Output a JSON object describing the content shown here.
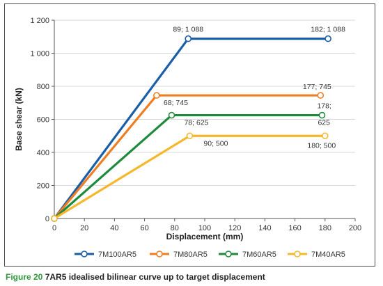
{
  "chart_data": {
    "type": "line",
    "xlabel": "Displacement (mm)",
    "ylabel": "Base shear (kN)",
    "xlim": [
      0,
      200
    ],
    "ylim": [
      0,
      1200
    ],
    "x_ticks": [
      0,
      20,
      40,
      60,
      80,
      100,
      120,
      140,
      160,
      180,
      200
    ],
    "y_ticks": [
      0,
      200,
      400,
      600,
      800,
      1000,
      1200
    ],
    "y_tick_labels": [
      "0",
      "200",
      "400",
      "600",
      "800",
      "1 000",
      "1 200"
    ],
    "grid": "horizontal",
    "legend_position": "bottom",
    "series": [
      {
        "name": "7M100AR5",
        "color": "#1a5ea8",
        "points": [
          [
            0,
            0
          ],
          [
            89,
            1088
          ],
          [
            182,
            1088
          ]
        ],
        "labels": [
          {
            "text": "89; 1 088",
            "point": 1
          },
          {
            "text": "182; 1 088",
            "point": 2
          }
        ]
      },
      {
        "name": "7M80AR5",
        "color": "#ef7d22",
        "points": [
          [
            0,
            0
          ],
          [
            68,
            745
          ],
          [
            177,
            745
          ]
        ],
        "labels": [
          {
            "text": "68; 745",
            "point": 1
          },
          {
            "text": "177; 745",
            "point": 2
          }
        ]
      },
      {
        "name": "7M60AR5",
        "color": "#1e8a3c",
        "points": [
          [
            0,
            0
          ],
          [
            78,
            625
          ],
          [
            178,
            625
          ]
        ],
        "labels": [
          {
            "text": "78; 625",
            "point": 1
          },
          {
            "text": "178;",
            "point": 2
          },
          {
            "text": "625",
            "point": 2
          }
        ]
      },
      {
        "name": "7M40AR5",
        "color": "#f5b82c",
        "points": [
          [
            0,
            0
          ],
          [
            90,
            500
          ],
          [
            180,
            500
          ]
        ],
        "labels": [
          {
            "text": "90; 500",
            "point": 1
          },
          {
            "text": "180; 500",
            "point": 2
          }
        ]
      }
    ]
  },
  "caption": {
    "figure": "Figure 20",
    "text": " 7AR5 idealised bilinear curve up to target displacement"
  }
}
